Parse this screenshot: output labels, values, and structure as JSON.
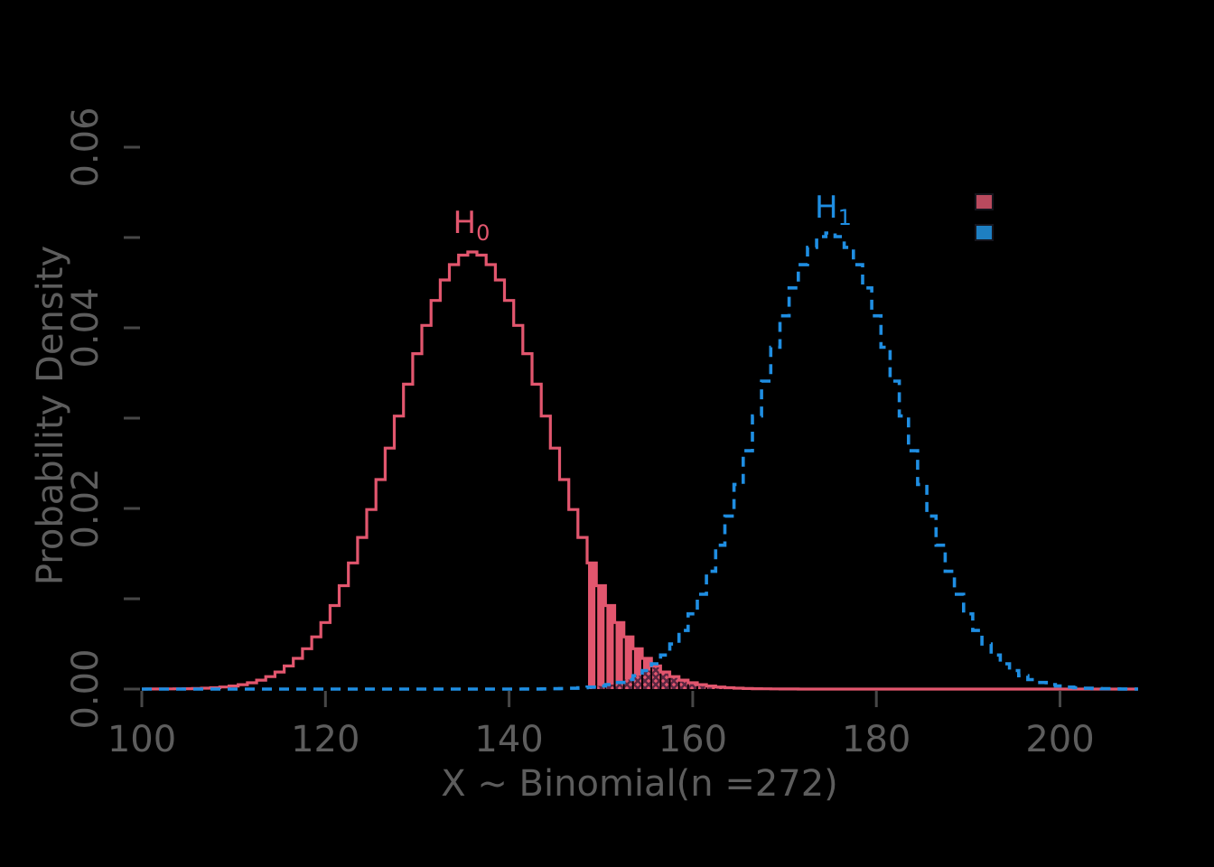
{
  "chart_data": {
    "type": "line",
    "subtype": "step-pmf-distributions",
    "title": "",
    "xlabel": "X ~ Binomial(n =272)",
    "ylabel": "Probability Density",
    "x_axis_range": [
      100,
      208.5
    ],
    "y_axis_range": [
      0,
      0.065
    ],
    "grid": false,
    "x_ticks": [
      {
        "value": 100,
        "label": "100"
      },
      {
        "value": 120,
        "label": "120"
      },
      {
        "value": 140,
        "label": "140"
      },
      {
        "value": 160,
        "label": "160"
      },
      {
        "value": 180,
        "label": "180"
      },
      {
        "value": 200,
        "label": "200"
      }
    ],
    "y_ticks": [
      {
        "value": 0.0,
        "label": "0.00"
      },
      {
        "value": 0.01,
        "label": ""
      },
      {
        "value": 0.02,
        "label": "0.02"
      },
      {
        "value": 0.03,
        "label": ""
      },
      {
        "value": 0.04,
        "label": "0.04"
      },
      {
        "value": 0.05,
        "label": ""
      },
      {
        "value": 0.06,
        "label": "0.06"
      }
    ],
    "series": [
      {
        "name": "H0",
        "hypothesis_label_main": "H",
        "hypothesis_label_sub": "0",
        "distribution": "Binomial",
        "n": 272,
        "p": 0.5,
        "mean": 136,
        "sd": 8.246,
        "peak_density": 0.0484,
        "pmf_formula": "peak_density*exp(-0.5*((k-mean)/sd)^2)",
        "line_style": "solid",
        "line_color": "#e2566e",
        "line_width": 3.2
      },
      {
        "name": "H1",
        "hypothesis_label_main": "H",
        "hypothesis_label_sub": "1",
        "distribution": "Binomial",
        "n": 272,
        "p": 0.643,
        "mean": 175,
        "sd": 7.9,
        "peak_density": 0.0505,
        "pmf_formula": "peak_density*exp(-0.5*((k-mean)/sd)^2)",
        "line_style": "dashed",
        "dash_pattern": [
          11,
          8
        ],
        "line_color": "#1f8ee2",
        "line_width": 3.6
      }
    ],
    "critical_value": 149,
    "regions": [
      {
        "name": "rejection-region",
        "description": "Upper tail of H0 pmf for k >= 149, solid filled bars",
        "from_k": 149,
        "source_series": "H0",
        "fill_color": "#e2566e",
        "bar_width": 0.8
      },
      {
        "name": "overlap-region",
        "description": "min(H0,H1) pmf bars for k >= 149, crosshatched",
        "from_k": 149,
        "source_series": "min(H0,H1)",
        "fill_color": "#e2566e",
        "hatch": "xx",
        "hatch_color": "#5c2742",
        "bar_width": 0.8
      }
    ],
    "annotations": [
      {
        "name": "h0-label",
        "main": "H",
        "sub": "0",
        "x": 135.9,
        "y": 0.0496,
        "color": "#e2566e"
      },
      {
        "name": "h1-label",
        "main": "H",
        "sub": "1",
        "x": 175.3,
        "y": 0.0513,
        "color": "#1f8ee2"
      }
    ],
    "legend": {
      "position": "upper right",
      "items": [
        {
          "name": "h0-swatch",
          "color": "#b94a5e",
          "label": ""
        },
        {
          "name": "h1-swatch",
          "color": "#1e7fc2",
          "label": ""
        }
      ]
    },
    "tick_color": "#474747",
    "label_color": "#5d5d5d"
  }
}
